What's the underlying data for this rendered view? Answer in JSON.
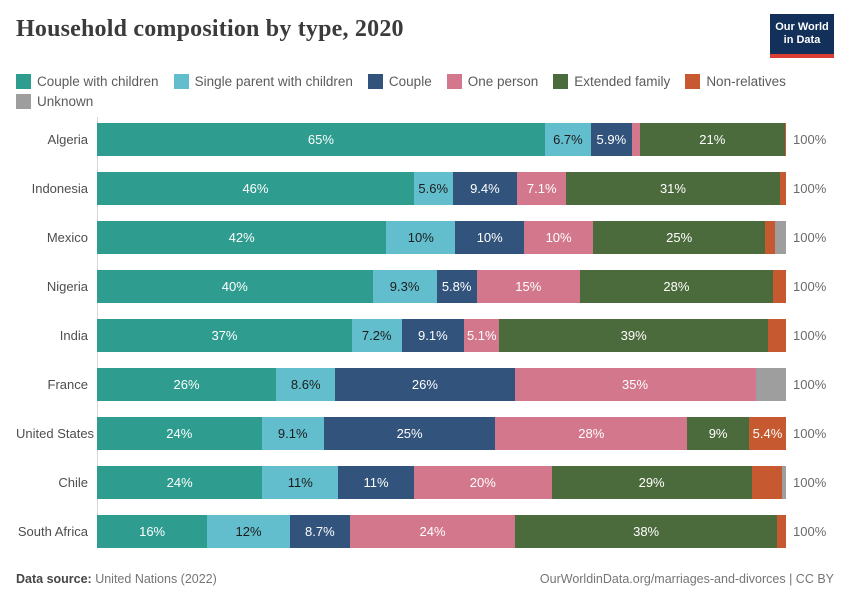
{
  "header": {
    "title": "Household composition by type, 2020",
    "logo_line1": "Our World",
    "logo_line2": "in Data"
  },
  "footer": {
    "source_label": "Data source:",
    "source_value": " United Nations (2022)",
    "attribution": "OurWorldinData.org/marriages-and-divorces | CC BY"
  },
  "chart_data": {
    "type": "bar",
    "subtype": "horizontal-stacked-100",
    "title": "Household composition by type, 2020",
    "total_label": "100%",
    "categories": [
      "Couple with children",
      "Single parent with children",
      "Couple",
      "One person",
      "Extended family",
      "Non-relatives",
      "Unknown"
    ],
    "colors": [
      "#2E9C8F",
      "#62BECD",
      "#32547C",
      "#D3788C",
      "#4C6B3C",
      "#C6592F",
      "#9E9E9E"
    ],
    "rows": [
      {
        "country": "Algeria",
        "values": [
          65,
          6.7,
          5.9,
          1.2,
          21,
          0.2,
          0
        ],
        "labels": [
          "65%",
          "6.7%",
          "5.9%",
          "",
          "21%",
          "",
          ""
        ]
      },
      {
        "country": "Indonesia",
        "values": [
          46,
          5.6,
          9.4,
          7.1,
          31,
          0.9,
          0
        ],
        "labels": [
          "46%",
          "5.6%",
          "9.4%",
          "7.1%",
          "31%",
          "",
          ""
        ]
      },
      {
        "country": "Mexico",
        "values": [
          42,
          10,
          10,
          10,
          25,
          1.4,
          1.6
        ],
        "labels": [
          "42%",
          "10%",
          "10%",
          "10%",
          "25%",
          "",
          ""
        ]
      },
      {
        "country": "Nigeria",
        "values": [
          40,
          9.3,
          5.8,
          15,
          28,
          1.9,
          0
        ],
        "labels": [
          "40%",
          "9.3%",
          "5.8%",
          "15%",
          "28%",
          "",
          ""
        ]
      },
      {
        "country": "India",
        "values": [
          37,
          7.2,
          9.1,
          5.1,
          39,
          2.6,
          0
        ],
        "labels": [
          "37%",
          "7.2%",
          "9.1%",
          "5.1%",
          "39%",
          "",
          ""
        ]
      },
      {
        "country": "France",
        "values": [
          26,
          8.6,
          26,
          35,
          0,
          0,
          4.4
        ],
        "labels": [
          "26%",
          "8.6%",
          "26%",
          "35%",
          "",
          "",
          ""
        ]
      },
      {
        "country": "United States",
        "values": [
          24,
          9.1,
          25,
          28,
          9,
          5.4,
          0
        ],
        "labels": [
          "24%",
          "9.1%",
          "25%",
          "28%",
          "9%",
          "5.4%",
          ""
        ]
      },
      {
        "country": "Chile",
        "values": [
          24,
          11,
          11,
          20,
          29,
          4.4,
          0.6
        ],
        "labels": [
          "24%",
          "11%",
          "11%",
          "20%",
          "29%",
          "",
          ""
        ]
      },
      {
        "country": "South Africa",
        "values": [
          16,
          12,
          8.7,
          24,
          38,
          1.3,
          0
        ],
        "labels": [
          "16%",
          "12%",
          "8.7%",
          "24%",
          "38%",
          "",
          ""
        ]
      }
    ]
  }
}
